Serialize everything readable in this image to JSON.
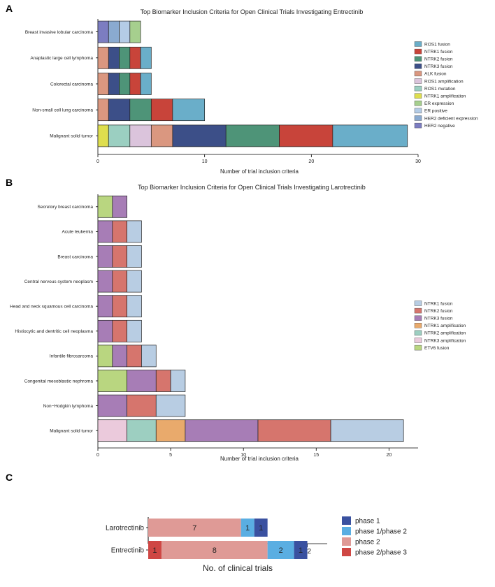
{
  "chart_data": [
    {
      "panel": "A",
      "type": "bar",
      "orientation": "horizontal",
      "stacked": true,
      "title": "Top Biomarker Inclusion Criteria for Open Clinical Trials Investigating Entrectinib",
      "xlabel": "Number of trial inclusion criteria",
      "ylabel": "",
      "xlim": [
        0,
        30
      ],
      "xticks": [
        "0",
        "10",
        "20",
        "30"
      ],
      "legend_position": "right",
      "categories": [
        "Breast invasive lobular carcinoma",
        "Anaplastic large cell lymphoma",
        "Colorectal carcinoma",
        "Non-small cell lung carcinoma",
        "Malignant solid tumor"
      ],
      "stack_order": [
        "NTRK1 amplification",
        "ROS1 mutation",
        "ROS1 amplification",
        "ALK fusion",
        "NTRK3 fusion",
        "NTRK2 fusion",
        "NTRK1 fusion",
        "ROS1 fusion",
        "HER2 negative",
        "HER2 deficient expression",
        "ER positive",
        "ER expression"
      ],
      "series": [
        {
          "name": "ROS1 fusion",
          "color": "#6aaec9",
          "values": [
            0,
            1,
            1,
            3,
            7
          ]
        },
        {
          "name": "NTRK1 fusion",
          "color": "#c8443a",
          "values": [
            0,
            1,
            1,
            2,
            5
          ]
        },
        {
          "name": "NTRK2 fusion",
          "color": "#4e9478",
          "values": [
            0,
            1,
            1,
            2,
            5
          ]
        },
        {
          "name": "NTRK3 fusion",
          "color": "#3c4f88",
          "values": [
            0,
            1,
            1,
            2,
            5
          ]
        },
        {
          "name": "ALK fusion",
          "color": "#da9780",
          "values": [
            0,
            1,
            1,
            1,
            2
          ]
        },
        {
          "name": "ROS1 amplification",
          "color": "#dbc4dc",
          "values": [
            0,
            0,
            0,
            0,
            2
          ]
        },
        {
          "name": "ROS1 mutation",
          "color": "#9bcfc1",
          "values": [
            0,
            0,
            0,
            0,
            2
          ]
        },
        {
          "name": "NTRK1 amplification",
          "color": "#dede4e",
          "values": [
            0,
            0,
            0,
            0,
            1
          ]
        },
        {
          "name": "ER expression",
          "color": "#a6cf8e",
          "values": [
            1,
            0,
            0,
            0,
            0
          ]
        },
        {
          "name": "ER positive",
          "color": "#b4cce6",
          "values": [
            1,
            0,
            0,
            0,
            0
          ]
        },
        {
          "name": "HER2 deficient expression",
          "color": "#8aaad0",
          "values": [
            1,
            0,
            0,
            0,
            0
          ]
        },
        {
          "name": "HER2 negative",
          "color": "#7c7dc1",
          "values": [
            1,
            0,
            0,
            0,
            0
          ]
        }
      ]
    },
    {
      "panel": "B",
      "type": "bar",
      "orientation": "horizontal",
      "stacked": true,
      "title": "Top Biomarker Inclusion Criteria for Open Clinical Trials Investigating Larotrectinib",
      "xlabel": "Number of trial inclusion criteria",
      "ylabel": "",
      "xlim": [
        0,
        22
      ],
      "xticks": [
        "0",
        "5",
        "10",
        "15",
        "20"
      ],
      "legend_position": "right",
      "categories": [
        "Secretory breast carcinoma",
        "Acute leukemia",
        "Breast carcinoma",
        "Central nervous system neoplasm",
        "Head and neck squamous cell carcinoma",
        "Histiocytic and dentritic cell neoplasma",
        "Infantile fibrosarcoma",
        "Congenital mesoblastic nephroma",
        "Non−Hodgkin lymphoma",
        "Malignant solid tumor"
      ],
      "stack_order": [
        "ETV6 fusion",
        "NTRK3 amplification",
        "NTRK2 amplification",
        "NTRK1 amplification",
        "NTRK3 fusion",
        "NTRK2 fusion",
        "NTRK1 fusion"
      ],
      "series": [
        {
          "name": "NTRK1 fusion",
          "color": "#b8cde3",
          "values": [
            0,
            1,
            1,
            1,
            1,
            1,
            1,
            1,
            2,
            5
          ]
        },
        {
          "name": "NTRK2 fusion",
          "color": "#d6756d",
          "values": [
            0,
            1,
            1,
            1,
            1,
            1,
            1,
            1,
            2,
            5
          ]
        },
        {
          "name": "NTRK3 fusion",
          "color": "#a77db6",
          "values": [
            1,
            1,
            1,
            1,
            1,
            1,
            1,
            2,
            2,
            5
          ]
        },
        {
          "name": "NTRK1 amplification",
          "color": "#e9aa6c",
          "values": [
            0,
            0,
            0,
            0,
            0,
            0,
            0,
            0,
            0,
            2
          ]
        },
        {
          "name": "NTRK2 amplification",
          "color": "#9dcfc1",
          "values": [
            0,
            0,
            0,
            0,
            0,
            0,
            0,
            0,
            0,
            2
          ]
        },
        {
          "name": "NTRK3 amplification",
          "color": "#ebcadc",
          "values": [
            0,
            0,
            0,
            0,
            0,
            0,
            0,
            0,
            0,
            2
          ]
        },
        {
          "name": "ETV6 fusion",
          "color": "#b9d680",
          "values": [
            1,
            0,
            0,
            0,
            0,
            0,
            1,
            2,
            0,
            0
          ]
        }
      ]
    },
    {
      "panel": "C",
      "type": "bar",
      "orientation": "horizontal",
      "stacked": true,
      "title": "",
      "xlabel": "No. of clinical trials",
      "ylabel": "",
      "xlim": [
        0,
        13
      ],
      "xticks": [
        "2",
        "4",
        "6",
        "8",
        "10",
        "12"
      ],
      "legend_position": "right",
      "categories": [
        "Larotrectinib",
        "Entrectinib"
      ],
      "stack_order": [
        "phase 2/phase 3",
        "phase 2",
        "phase 1/phase 2",
        "phase 1"
      ],
      "series": [
        {
          "name": "phase 1",
          "color": "#3a51a0",
          "values": [
            1,
            1
          ],
          "labels": [
            "1",
            "1"
          ]
        },
        {
          "name": "phase 1/phase 2",
          "color": "#5aaee2",
          "values": [
            1,
            2
          ],
          "labels": [
            "1",
            "2"
          ]
        },
        {
          "name": "phase 2",
          "color": "#df9a96",
          "values": [
            7,
            8
          ],
          "labels": [
            "7",
            "8"
          ]
        },
        {
          "name": "phase 2/phase 3",
          "color": "#cf4744",
          "values": [
            0,
            1
          ],
          "labels": [
            "",
            "1"
          ]
        }
      ]
    }
  ]
}
